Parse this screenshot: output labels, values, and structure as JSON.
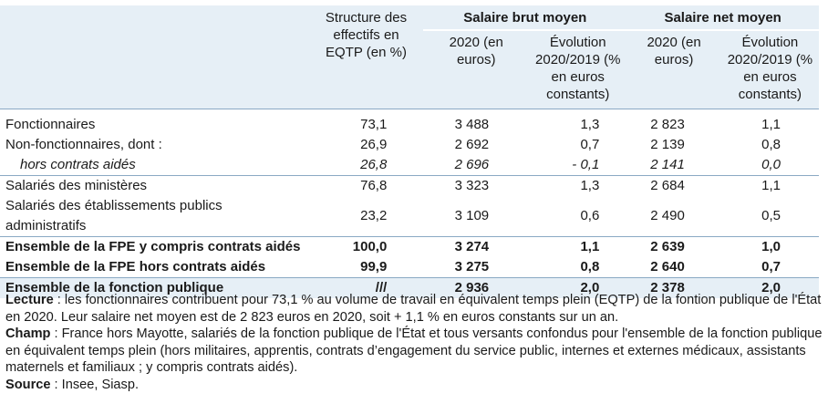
{
  "header": {
    "structure": "Structure des effectifs en EQTP (en %)",
    "brut_group": "Salaire brut moyen",
    "net_group": "Salaire net moyen",
    "year_brut": "2020 (en euros)",
    "evol_brut": "Évolution 2020/2019 (% en euros constants)",
    "year_net": "2020 (en euros)",
    "evol_net": "Évolution 2020/2019 (% en euros constants)"
  },
  "rows": [
    {
      "label": "Fonctionnaires",
      "eqtp": "73,1",
      "brut": "3 488",
      "brut_evol": "1,3",
      "net": "2 823",
      "net_evol": "1,1"
    },
    {
      "label": "Non-fonctionnaires, dont :",
      "eqtp": "26,9",
      "brut": "2 692",
      "brut_evol": "0,7",
      "net": "2 139",
      "net_evol": "0,8"
    },
    {
      "label": "hors contrats aidés",
      "eqtp": "26,8",
      "brut": "2 696",
      "brut_evol": "- 0,1",
      "net": "2 141",
      "net_evol": "0,0"
    },
    {
      "label": "Salariés des ministères",
      "eqtp": "76,8",
      "brut": "3 323",
      "brut_evol": "1,3",
      "net": "2 684",
      "net_evol": "1,1"
    },
    {
      "label": "Salariés des établissements publics administratifs",
      "eqtp": "23,2",
      "brut": "3 109",
      "brut_evol": "0,6",
      "net": "2 490",
      "net_evol": "0,5"
    },
    {
      "label": "Ensemble de la FPE y compris contrats aidés",
      "eqtp": "100,0",
      "brut": "3 274",
      "brut_evol": "1,1",
      "net": "2 639",
      "net_evol": "1,0"
    },
    {
      "label": "Ensemble de la FPE hors contrats aidés",
      "eqtp": "99,9",
      "brut": "3 275",
      "brut_evol": "0,8",
      "net": "2 640",
      "net_evol": "0,7"
    },
    {
      "label": "Ensemble de la fonction publique",
      "eqtp": "///",
      "brut": "2 936",
      "brut_evol": "2,0",
      "net": "2 378",
      "net_evol": "2,0"
    }
  ],
  "notes": {
    "lecture_label": "Lecture",
    "lecture_text": " : les fonctionnaires contribuent pour 73,1 % au volume de travail en équivalent temps plein (EQTP) de la fontion publique de l'État en 2020. Leur salaire net moyen est de 2 823 euros en 2020, soit + 1,1 % en euros constants sur un an.",
    "champ_label": "Champ",
    "champ_text": " : France hors Mayotte, salariés de la fonction publique de l'État et tous versants confondus pour l'ensemble de la fonction publique en équivalent temps plein (hors militaires, apprentis, contrats d’engagement du service public, internes et externes médicaux, assistants maternels et familiaux ; y compris contrats aidés).",
    "source_label": "Source",
    "source_text": " : Insee, Siasp."
  }
}
